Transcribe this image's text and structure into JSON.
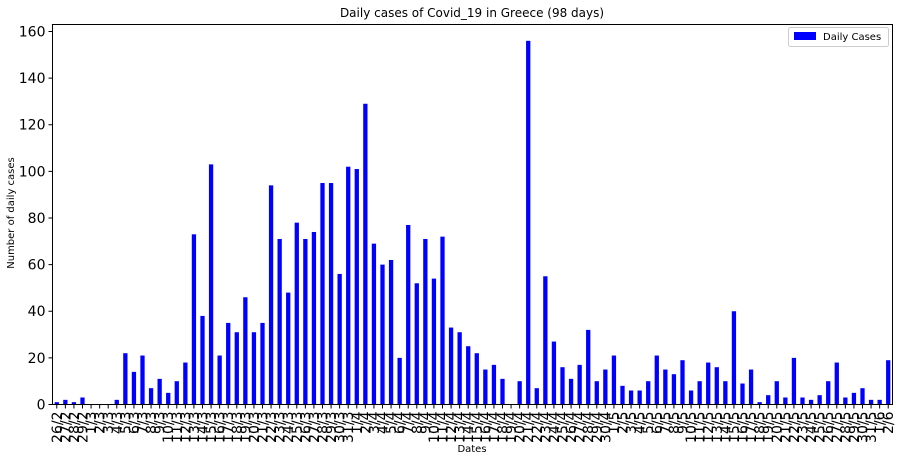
{
  "chart_data": {
    "type": "bar",
    "title": "Daily cases of Covid_19 in Greece (98 days)",
    "xlabel": "Dates",
    "ylabel": "Number of daily cases",
    "ylim": [
      0,
      163
    ],
    "yticks": [
      "0",
      "20",
      "40",
      "60",
      "80",
      "100",
      "120",
      "140",
      "160"
    ],
    "grid": false,
    "legend_position": "top-right",
    "categories": [
      "26/2",
      "27/2",
      "28/2",
      "29/2",
      "1/3",
      "2/3",
      "3/3",
      "4/3",
      "5/3",
      "6/3",
      "7/3",
      "8/3",
      "9/3",
      "10/3",
      "11/3",
      "12/3",
      "13/3",
      "14/3",
      "15/3",
      "16/3",
      "17/3",
      "18/3",
      "19/3",
      "20/3",
      "21/3",
      "22/3",
      "23/3",
      "24/3",
      "25/3",
      "26/3",
      "27/3",
      "28/3",
      "29/3",
      "30/3",
      "31/3",
      "1/4",
      "2/4",
      "3/4",
      "4/4",
      "5/4",
      "6/4",
      "7/4",
      "8/4",
      "9/4",
      "10/4",
      "11/4",
      "12/4",
      "13/4",
      "14/4",
      "15/4",
      "16/4",
      "17/4",
      "18/4",
      "19/4",
      "20/4",
      "21/4",
      "22/4",
      "23/4",
      "24/4",
      "25/4",
      "26/4",
      "27/4",
      "28/4",
      "29/4",
      "30/4",
      "1/5",
      "2/5",
      "3/5",
      "4/5",
      "5/5",
      "6/5",
      "7/5",
      "8/5",
      "9/5",
      "10/5",
      "11/5",
      "12/5",
      "13/5",
      "14/5",
      "15/5",
      "16/5",
      "17/5",
      "18/5",
      "19/5",
      "20/5",
      "21/5",
      "22/5",
      "23/5",
      "24/5",
      "25/5",
      "26/5",
      "27/5",
      "28/5",
      "29/5",
      "30/5",
      "31/5",
      "1/6",
      "2/6"
    ],
    "series": [
      {
        "name": "Daily Cases",
        "color": "#0000ff",
        "values": [
          1,
          2,
          1,
          3,
          0,
          0,
          0,
          2,
          22,
          14,
          21,
          7,
          11,
          5,
          10,
          18,
          73,
          38,
          103,
          21,
          35,
          31,
          46,
          31,
          35,
          94,
          71,
          48,
          78,
          71,
          74,
          95,
          95,
          56,
          102,
          101,
          129,
          69,
          60,
          62,
          20,
          77,
          52,
          71,
          54,
          72,
          33,
          31,
          25,
          22,
          15,
          17,
          11,
          0,
          10,
          156,
          7,
          55,
          27,
          16,
          11,
          17,
          32,
          10,
          15,
          21,
          8,
          6,
          6,
          10,
          21,
          15,
          13,
          19,
          6,
          10,
          18,
          16,
          10,
          40,
          9,
          15,
          1,
          4,
          10,
          3,
          20,
          3,
          2,
          4,
          10,
          18,
          3,
          5,
          7,
          2,
          2,
          19
        ]
      }
    ]
  }
}
